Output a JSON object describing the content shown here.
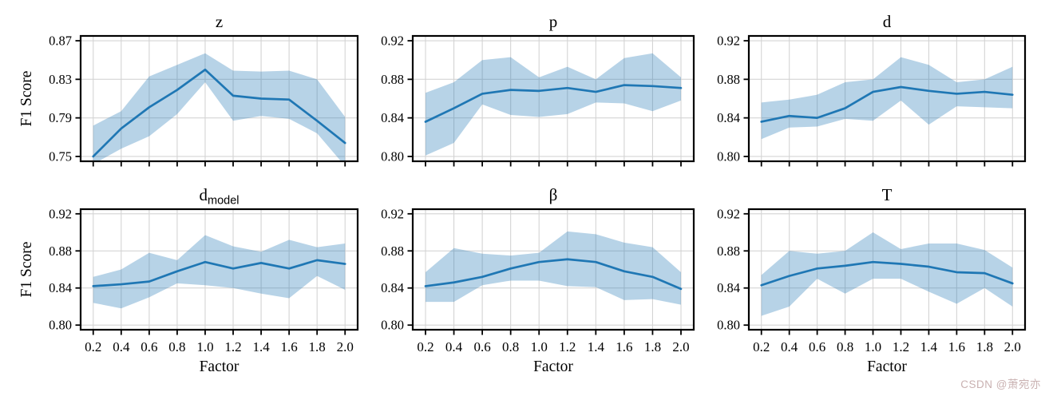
{
  "figure": {
    "background": "#ffffff",
    "colors": {
      "line": "#1f77b4",
      "band_opacity": 0.32,
      "grid": "#d4d4d4",
      "frame": "#000000",
      "text": "#000000"
    },
    "shared_ylabel": "F1 Score",
    "shared_xlabel": "Factor"
  },
  "watermark": {
    "text": "CSDN @萧宛亦",
    "color": "#c9b1b1"
  },
  "chart_data": [
    {
      "id": "z",
      "type": "line",
      "title": "z",
      "title_sub": "",
      "ylabel": "F1 Score",
      "xlabel": "",
      "x": [
        0.2,
        0.4,
        0.6,
        0.8,
        1.0,
        1.2,
        1.4,
        1.6,
        1.8,
        2.0
      ],
      "mean": [
        0.75,
        0.779,
        0.801,
        0.819,
        0.84,
        0.813,
        0.81,
        0.809,
        0.787,
        0.764
      ],
      "band_lower": [
        0.742,
        0.758,
        0.771,
        0.794,
        0.827,
        0.787,
        0.792,
        0.789,
        0.774,
        0.74
      ],
      "band_upper": [
        0.782,
        0.797,
        0.833,
        0.845,
        0.857,
        0.839,
        0.838,
        0.839,
        0.83,
        0.791
      ],
      "xlim": [
        0.11,
        2.09
      ],
      "ylim": [
        0.745,
        0.875
      ],
      "xticks": [
        0.2,
        0.4,
        0.6,
        0.8,
        1.0,
        1.2,
        1.4,
        1.6,
        1.8,
        2.0
      ],
      "yticks": [
        0.75,
        0.79,
        0.83,
        0.87
      ],
      "grid": true,
      "legend": "none",
      "show_xticklabels": false
    },
    {
      "id": "p",
      "type": "line",
      "title": "p",
      "title_sub": "",
      "ylabel": "",
      "xlabel": "",
      "x": [
        0.2,
        0.4,
        0.6,
        0.8,
        1.0,
        1.2,
        1.4,
        1.6,
        1.8,
        2.0
      ],
      "mean": [
        0.836,
        0.85,
        0.865,
        0.869,
        0.868,
        0.871,
        0.867,
        0.874,
        0.873,
        0.871
      ],
      "band_lower": [
        0.801,
        0.814,
        0.854,
        0.843,
        0.841,
        0.844,
        0.856,
        0.855,
        0.847,
        0.858
      ],
      "band_upper": [
        0.866,
        0.877,
        0.9,
        0.903,
        0.882,
        0.893,
        0.88,
        0.902,
        0.907,
        0.882
      ],
      "xlim": [
        0.11,
        2.09
      ],
      "ylim": [
        0.795,
        0.925
      ],
      "xticks": [
        0.2,
        0.4,
        0.6,
        0.8,
        1.0,
        1.2,
        1.4,
        1.6,
        1.8,
        2.0
      ],
      "yticks": [
        0.8,
        0.84,
        0.88,
        0.92
      ],
      "grid": true,
      "legend": "none",
      "show_xticklabels": false
    },
    {
      "id": "d",
      "type": "line",
      "title": "d",
      "title_sub": "",
      "ylabel": "",
      "xlabel": "",
      "x": [
        0.2,
        0.4,
        0.6,
        0.8,
        1.0,
        1.2,
        1.4,
        1.6,
        1.8,
        2.0
      ],
      "mean": [
        0.836,
        0.842,
        0.84,
        0.85,
        0.867,
        0.872,
        0.868,
        0.865,
        0.867,
        0.864
      ],
      "band_lower": [
        0.818,
        0.83,
        0.831,
        0.839,
        0.837,
        0.858,
        0.833,
        0.852,
        0.851,
        0.85
      ],
      "band_upper": [
        0.856,
        0.859,
        0.864,
        0.877,
        0.88,
        0.903,
        0.895,
        0.877,
        0.88,
        0.893
      ],
      "xlim": [
        0.11,
        2.09
      ],
      "ylim": [
        0.795,
        0.925
      ],
      "xticks": [
        0.2,
        0.4,
        0.6,
        0.8,
        1.0,
        1.2,
        1.4,
        1.6,
        1.8,
        2.0
      ],
      "yticks": [
        0.8,
        0.84,
        0.88,
        0.92
      ],
      "grid": true,
      "legend": "none",
      "show_xticklabels": false
    },
    {
      "id": "d_model",
      "type": "line",
      "title": "d",
      "title_sub": "model",
      "ylabel": "F1 Score",
      "xlabel": "Factor",
      "x": [
        0.2,
        0.4,
        0.6,
        0.8,
        1.0,
        1.2,
        1.4,
        1.6,
        1.8,
        2.0
      ],
      "mean": [
        0.842,
        0.844,
        0.847,
        0.858,
        0.868,
        0.861,
        0.867,
        0.861,
        0.87,
        0.866
      ],
      "band_lower": [
        0.824,
        0.818,
        0.83,
        0.845,
        0.843,
        0.84,
        0.834,
        0.829,
        0.853,
        0.838
      ],
      "band_upper": [
        0.852,
        0.86,
        0.878,
        0.87,
        0.897,
        0.885,
        0.879,
        0.892,
        0.884,
        0.888
      ],
      "xlim": [
        0.11,
        2.09
      ],
      "ylim": [
        0.795,
        0.925
      ],
      "xticks": [
        0.2,
        0.4,
        0.6,
        0.8,
        1.0,
        1.2,
        1.4,
        1.6,
        1.8,
        2.0
      ],
      "yticks": [
        0.8,
        0.84,
        0.88,
        0.92
      ],
      "grid": true,
      "legend": "none",
      "show_xticklabels": true
    },
    {
      "id": "beta",
      "type": "line",
      "title": "β",
      "title_sub": "",
      "ylabel": "",
      "xlabel": "Factor",
      "x": [
        0.2,
        0.4,
        0.6,
        0.8,
        1.0,
        1.2,
        1.4,
        1.6,
        1.8,
        2.0
      ],
      "mean": [
        0.842,
        0.846,
        0.852,
        0.861,
        0.868,
        0.871,
        0.868,
        0.858,
        0.852,
        0.839
      ],
      "band_lower": [
        0.825,
        0.825,
        0.843,
        0.848,
        0.848,
        0.842,
        0.841,
        0.827,
        0.828,
        0.822
      ],
      "band_upper": [
        0.857,
        0.883,
        0.877,
        0.875,
        0.878,
        0.901,
        0.898,
        0.889,
        0.884,
        0.857
      ],
      "xlim": [
        0.11,
        2.09
      ],
      "ylim": [
        0.795,
        0.925
      ],
      "xticks": [
        0.2,
        0.4,
        0.6,
        0.8,
        1.0,
        1.2,
        1.4,
        1.6,
        1.8,
        2.0
      ],
      "yticks": [
        0.8,
        0.84,
        0.88,
        0.92
      ],
      "grid": true,
      "legend": "none",
      "show_xticklabels": true
    },
    {
      "id": "T",
      "type": "line",
      "title": "T",
      "title_sub": "",
      "ylabel": "",
      "xlabel": "Factor",
      "x": [
        0.2,
        0.4,
        0.6,
        0.8,
        1.0,
        1.2,
        1.4,
        1.6,
        1.8,
        2.0
      ],
      "mean": [
        0.843,
        0.853,
        0.861,
        0.864,
        0.868,
        0.866,
        0.863,
        0.857,
        0.856,
        0.845
      ],
      "band_lower": [
        0.81,
        0.82,
        0.85,
        0.834,
        0.85,
        0.85,
        0.836,
        0.823,
        0.84,
        0.82
      ],
      "band_upper": [
        0.854,
        0.88,
        0.877,
        0.88,
        0.9,
        0.882,
        0.888,
        0.888,
        0.881,
        0.862
      ],
      "xlim": [
        0.11,
        2.09
      ],
      "ylim": [
        0.795,
        0.925
      ],
      "xticks": [
        0.2,
        0.4,
        0.6,
        0.8,
        1.0,
        1.2,
        1.4,
        1.6,
        1.8,
        2.0
      ],
      "yticks": [
        0.8,
        0.84,
        0.88,
        0.92
      ],
      "grid": true,
      "legend": "none",
      "show_xticklabels": true
    }
  ]
}
